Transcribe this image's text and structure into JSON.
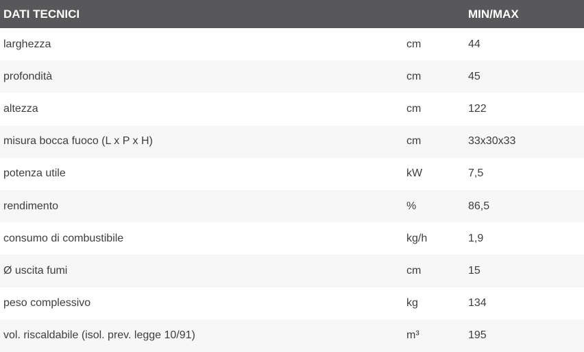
{
  "table": {
    "header": {
      "title": "DATI TECNICI",
      "minmax_label": "MIN/MAX"
    },
    "rows": [
      {
        "label": "larghezza",
        "unit": "cm",
        "value": "44"
      },
      {
        "label": "profondità",
        "unit": "cm",
        "value": "45"
      },
      {
        "label": "altezza",
        "unit": "cm",
        "value": "122"
      },
      {
        "label": "misura bocca fuoco (L x P x H)",
        "unit": "cm",
        "value": "33x30x33"
      },
      {
        "label": "potenza utile",
        "unit": "kW",
        "value": "7,5"
      },
      {
        "label": "rendimento",
        "unit": "%",
        "value": "86,5"
      },
      {
        "label": "consumo di combustibile",
        "unit": "kg/h",
        "value": "1,9"
      },
      {
        "label": "Ø uscita fumi",
        "unit": "cm",
        "value": "15"
      },
      {
        "label": "peso complessivo",
        "unit": "kg",
        "value": "134"
      },
      {
        "label": "vol. riscaldabile (isol. prev. legge 10/91)",
        "unit": "m³",
        "value": "195"
      }
    ],
    "colors": {
      "header_bg": "#58585a",
      "header_text": "#ffffff",
      "row_bg": "#ffffff",
      "row_alt_bg": "#f7f7f7",
      "body_text": "#3d3d3d"
    }
  }
}
